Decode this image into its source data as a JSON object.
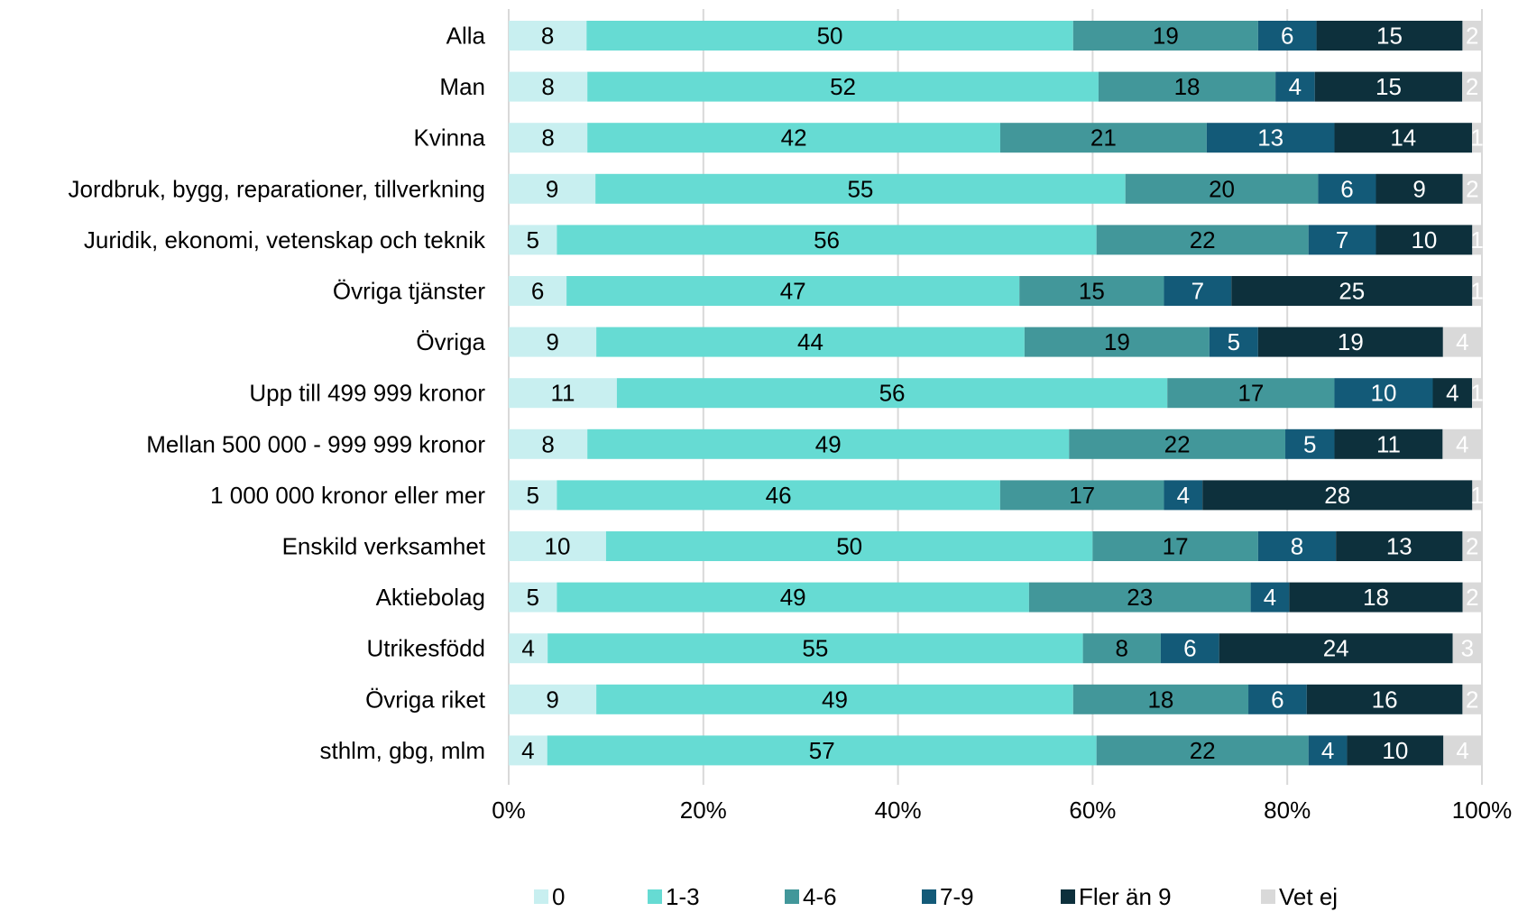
{
  "chart_data": {
    "type": "bar",
    "orientation": "horizontal",
    "stacked": "percent",
    "categories": [
      "Alla",
      "Man",
      "Kvinna",
      "Jordbruk, bygg, reparationer, tillverkning",
      "Juridik, ekonomi, vetenskap och teknik",
      "Övriga tjänster",
      "Övriga",
      "Upp till 499 999 kronor",
      "Mellan 500 000 - 999 999 kronor",
      "1 000 000 kronor eller mer",
      "Enskild verksamhet",
      "Aktiebolag",
      "Utrikesfödd",
      "Övriga riket",
      "sthlm, gbg, mlm"
    ],
    "series": [
      {
        "name": "0",
        "color": "#c8eff0",
        "label_color": "#000000",
        "values": [
          8,
          8,
          8,
          9,
          5,
          6,
          9,
          11,
          8,
          5,
          10,
          5,
          4,
          9,
          4
        ]
      },
      {
        "name": "1-3",
        "color": "#66dbd3",
        "label_color": "#000000",
        "values": [
          50,
          52,
          42,
          55,
          56,
          47,
          44,
          56,
          49,
          46,
          50,
          49,
          55,
          49,
          57
        ]
      },
      {
        "name": "4-6",
        "color": "#42979a",
        "label_color": "#000000",
        "values": [
          19,
          18,
          21,
          20,
          22,
          15,
          19,
          17,
          22,
          17,
          17,
          23,
          8,
          18,
          22
        ]
      },
      {
        "name": "7-9",
        "color": "#135a78",
        "label_color": "#ffffff",
        "values": [
          6,
          4,
          13,
          6,
          7,
          7,
          5,
          10,
          5,
          4,
          8,
          4,
          6,
          6,
          4
        ]
      },
      {
        "name": "Fler än 9",
        "color": "#0d303c",
        "label_color": "#ffffff",
        "values": [
          15,
          15,
          14,
          9,
          10,
          25,
          19,
          4,
          11,
          28,
          13,
          18,
          24,
          16,
          10
        ]
      },
      {
        "name": "Vet ej",
        "color": "#d9d9d9",
        "label_color": "#ffffff",
        "values": [
          2,
          2,
          1,
          2,
          1,
          1,
          4,
          1,
          4,
          1,
          2,
          2,
          3,
          2,
          4
        ]
      }
    ],
    "xlim": [
      0,
      100
    ],
    "x_ticks": [
      "0%",
      "20%",
      "40%",
      "60%",
      "80%",
      "100%"
    ],
    "grid": true,
    "legend_position": "bottom"
  }
}
